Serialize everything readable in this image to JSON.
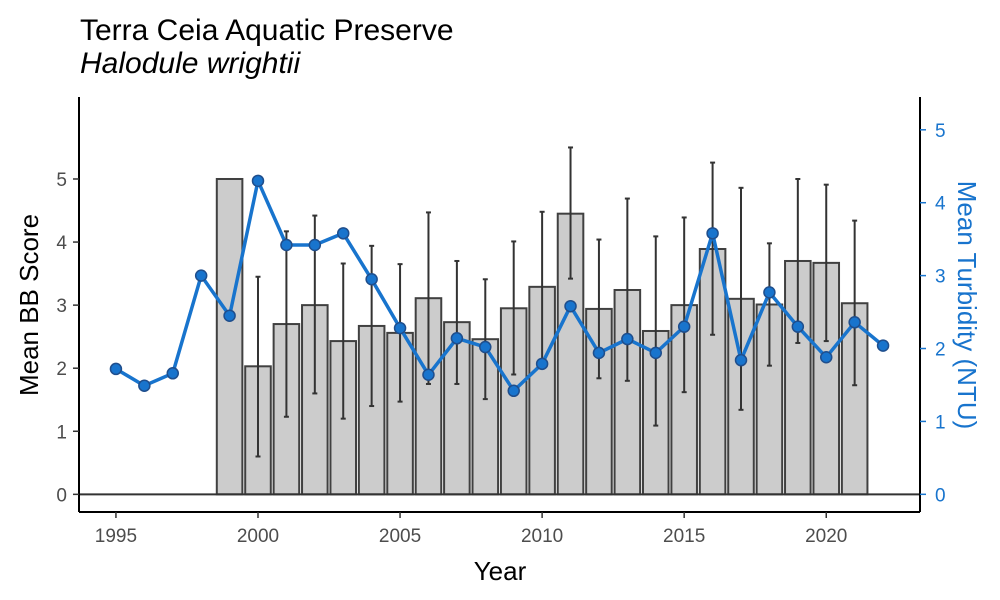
{
  "colors": {
    "bar_fill": "#cccccc",
    "bar_stroke": "#404040",
    "error_bar": "#333333",
    "turbidity_line": "#1874cd",
    "turbidity_point_stroke": "#1f4e8c",
    "axis": "#000000",
    "tick_label": "#4d4d4d"
  },
  "chart_data": {
    "type": "bar",
    "title": "Terra Ceia Aquatic Preserve",
    "subtitle": "Halodule wrightii",
    "xlabel": "Year",
    "ylabel": "Mean BB Score",
    "y2label": "Mean Turbidity (NTU)",
    "xlim": [
      1993.7,
      2023.3
    ],
    "ylim": [
      -0.28,
      6.3
    ],
    "y2lim": [
      -0.2425,
      5.45
    ],
    "x_ticks": [
      1995,
      2000,
      2005,
      2010,
      2015,
      2020
    ],
    "y_ticks": [
      0,
      1,
      2,
      3,
      4,
      5
    ],
    "y2_ticks": [
      0,
      1,
      2,
      3,
      4,
      5
    ],
    "grid": false,
    "bb_series": {
      "name": "Mean BB Score",
      "x": [
        1999,
        2000,
        2001,
        2002,
        2003,
        2004,
        2005,
        2006,
        2007,
        2008,
        2009,
        2010,
        2011,
        2012,
        2013,
        2014,
        2015,
        2016,
        2017,
        2018,
        2019,
        2020,
        2021
      ],
      "values": [
        5.0,
        2.03,
        2.7,
        3.0,
        2.43,
        2.67,
        2.56,
        3.11,
        2.73,
        2.46,
        2.95,
        3.29,
        4.45,
        2.94,
        3.24,
        2.59,
        3.0,
        3.89,
        3.1,
        3.01,
        3.7,
        3.67,
        3.03
      ],
      "err_low": [
        5.0,
        0.6,
        1.23,
        1.6,
        1.2,
        1.4,
        1.47,
        1.75,
        1.75,
        1.51,
        1.9,
        2.1,
        3.42,
        1.84,
        1.8,
        1.09,
        1.62,
        2.53,
        1.34,
        2.04,
        2.4,
        2.43,
        1.73
      ],
      "err_high": [
        5.0,
        3.45,
        4.17,
        4.42,
        3.66,
        3.94,
        3.65,
        4.47,
        3.7,
        3.41,
        4.01,
        4.48,
        5.5,
        4.04,
        4.69,
        4.09,
        4.39,
        5.26,
        4.86,
        3.98,
        5.0,
        4.91,
        4.34
      ]
    },
    "turbidity_series": {
      "name": "Mean Turbidity (NTU)",
      "x": [
        1995,
        1996,
        1997,
        1998,
        1999,
        2000,
        2001,
        2002,
        2003,
        2004,
        2005,
        2006,
        2007,
        2008,
        2009,
        2010,
        2011,
        2012,
        2013,
        2014,
        2015,
        2016,
        2017,
        2018,
        2019,
        2020,
        2021,
        2022
      ],
      "values": [
        1.72,
        1.49,
        1.66,
        3.0,
        2.45,
        4.3,
        3.42,
        3.42,
        3.58,
        2.95,
        2.28,
        1.64,
        2.14,
        2.02,
        1.42,
        1.79,
        2.58,
        1.94,
        2.13,
        1.94,
        2.3,
        3.58,
        1.84,
        2.77,
        2.3,
        1.88,
        2.36,
        2.04
      ]
    }
  }
}
